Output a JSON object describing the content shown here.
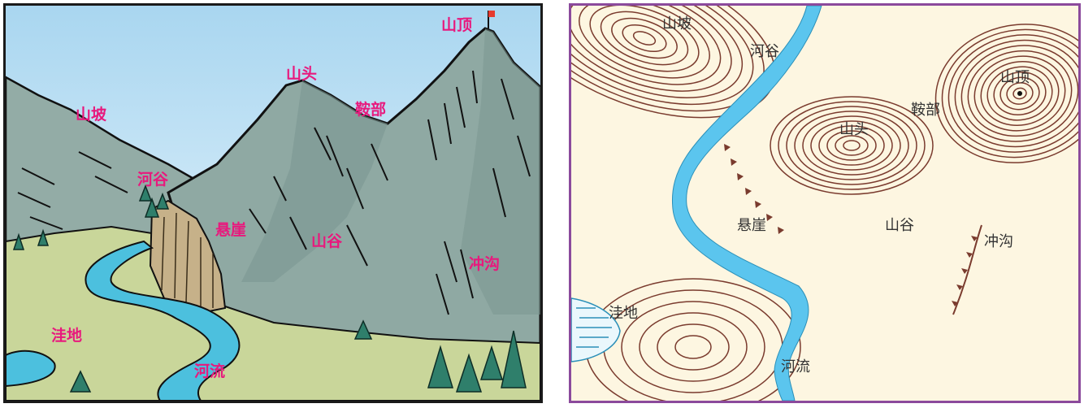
{
  "colors": {
    "sky_top": "#a9d6f0",
    "sky_bottom": "#e4f3fb",
    "mountain": "#8fa9a3",
    "mountain_dark": "#6f8c86",
    "meadow": "#c8d59a",
    "river": "#4cc0de",
    "cliff": "#c6b189",
    "label_pink": "#e8197d",
    "contour": "#7a3b2e",
    "map_bg": "#fdf6e1",
    "map_river": "#5bc5ee",
    "map_border": "#8b4a9c",
    "flag": "#e63a2e"
  },
  "illustration": {
    "labels": {
      "peak": "山顶",
      "hilltop": "山头",
      "saddle": "鞍部",
      "slope": "山坡",
      "valley": "河谷",
      "cliff": "悬崖",
      "ridge": "山谷",
      "gully": "冲沟",
      "depression": "洼地",
      "river": "河流"
    }
  },
  "contour_map": {
    "labels": {
      "slope": "山坡",
      "valley": "河谷",
      "peak": "山顶",
      "saddle": "鞍部",
      "hilltop": "山头",
      "cliff": "悬崖",
      "ridge": "山谷",
      "gully": "冲沟",
      "depression": "洼地",
      "river": "河流"
    }
  }
}
